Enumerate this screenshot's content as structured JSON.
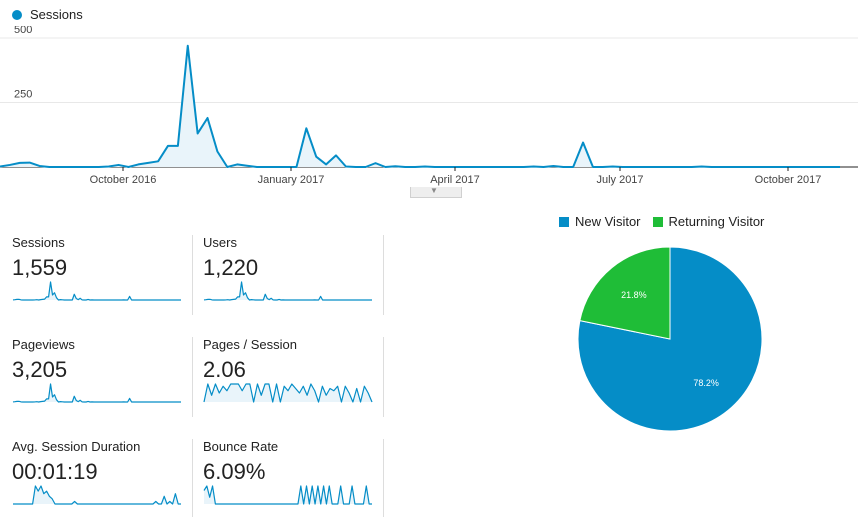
{
  "colors": {
    "accent": "#058dc7",
    "new_visitor": "#058dc7",
    "returning_visitor": "#1fbd37"
  },
  "main_chart": {
    "legend": "Sessions",
    "y_ticks": [
      "500",
      "250"
    ],
    "x_ticks": [
      "October 2016",
      "January 2017",
      "April 2017",
      "July 2017",
      "October 2017"
    ]
  },
  "metrics": [
    {
      "label": "Sessions",
      "value": "1,559"
    },
    {
      "label": "Users",
      "value": "1,220"
    },
    {
      "label": "Pageviews",
      "value": "3,205"
    },
    {
      "label": "Pages / Session",
      "value": "2.06"
    },
    {
      "label": "Avg. Session Duration",
      "value": "00:01:19"
    },
    {
      "label": "Bounce Rate",
      "value": "6.09%"
    }
  ],
  "pie": {
    "legend": [
      "New Visitor",
      "Returning Visitor"
    ],
    "labels": [
      "78.2%",
      "21.8%"
    ]
  },
  "chart_data": [
    {
      "type": "area",
      "series": [
        {
          "name": "Sessions",
          "values": [
            2,
            8,
            16,
            17,
            4,
            0,
            0,
            0,
            0,
            0,
            0,
            2,
            8,
            0,
            10,
            16,
            22,
            82,
            82,
            470,
            130,
            190,
            60,
            0,
            10,
            5,
            0,
            0,
            0,
            0,
            0,
            150,
            40,
            10,
            45,
            2,
            0,
            0,
            15,
            0,
            3,
            0,
            0,
            2,
            0,
            0,
            0,
            0,
            0,
            0,
            0,
            0,
            0,
            0,
            2,
            0,
            4,
            0,
            0,
            95,
            0,
            0,
            2,
            0,
            0,
            0,
            0,
            0,
            0,
            0,
            0,
            2,
            0,
            0,
            0,
            0,
            0,
            0,
            0,
            0,
            0,
            0,
            0,
            0,
            0,
            0
          ]
        }
      ],
      "ylim": [
        0,
        500
      ],
      "y_ticks": [
        250,
        500
      ],
      "x_ticks": [
        "October 2016",
        "January 2017",
        "April 2017",
        "July 2017",
        "October 2017"
      ],
      "grid": true
    },
    {
      "type": "pie",
      "categories": [
        "New Visitor",
        "Returning Visitor"
      ],
      "values": [
        78.2,
        21.8
      ],
      "legend_position": "top"
    }
  ]
}
